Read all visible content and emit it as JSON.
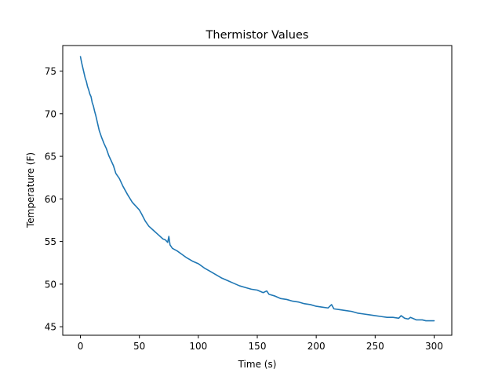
{
  "colors": {
    "line": "#1f77b4",
    "axes": "#000000",
    "background": "#ffffff"
  },
  "chart_data": {
    "type": "line",
    "title": "Thermistor Values",
    "xlabel": "Time (s)",
    "ylabel": "Temperature (F)",
    "xlim": [
      -15,
      315
    ],
    "ylim": [
      44,
      78
    ],
    "xticks": [
      0,
      50,
      100,
      150,
      200,
      250,
      300
    ],
    "yticks": [
      45,
      50,
      55,
      60,
      65,
      70,
      75
    ],
    "grid": false,
    "legend": "none",
    "series": [
      {
        "x": [
          0,
          1,
          2,
          3,
          4,
          5,
          6,
          7,
          8,
          9,
          10,
          11,
          12,
          13,
          14,
          15,
          16,
          18,
          20,
          22,
          24,
          26,
          28,
          30,
          33,
          36,
          40,
          44,
          48,
          50,
          52,
          55,
          58,
          62,
          66,
          70,
          72,
          74,
          75,
          76,
          78,
          82,
          86,
          90,
          95,
          100,
          105,
          110,
          115,
          120,
          125,
          130,
          135,
          140,
          145,
          150,
          155,
          158,
          160,
          165,
          170,
          175,
          180,
          185,
          190,
          195,
          200,
          205,
          210,
          213,
          215,
          220,
          225,
          230,
          235,
          240,
          245,
          250,
          255,
          260,
          265,
          270,
          272,
          275,
          278,
          280,
          285,
          290,
          293,
          296,
          300
        ],
        "y": [
          76.7,
          76.0,
          75.4,
          74.8,
          74.2,
          73.8,
          73.2,
          72.8,
          72.3,
          72.0,
          71.3,
          70.9,
          70.3,
          69.8,
          69.2,
          68.6,
          68.0,
          67.2,
          66.5,
          65.9,
          65.1,
          64.5,
          63.9,
          63.0,
          62.4,
          61.5,
          60.5,
          59.6,
          59.0,
          58.7,
          58.2,
          57.4,
          56.8,
          56.3,
          55.8,
          55.3,
          55.2,
          54.9,
          55.6,
          54.6,
          54.2,
          53.9,
          53.5,
          53.1,
          52.7,
          52.4,
          51.9,
          51.5,
          51.1,
          50.7,
          50.4,
          50.1,
          49.8,
          49.6,
          49.4,
          49.3,
          49.0,
          49.2,
          48.8,
          48.6,
          48.3,
          48.2,
          48.0,
          47.9,
          47.7,
          47.6,
          47.4,
          47.3,
          47.2,
          47.6,
          47.1,
          47.0,
          46.9,
          46.8,
          46.6,
          46.5,
          46.4,
          46.3,
          46.2,
          46.1,
          46.1,
          46.0,
          46.3,
          46.0,
          45.9,
          46.1,
          45.8,
          45.8,
          45.7,
          45.7,
          45.7
        ]
      }
    ]
  }
}
